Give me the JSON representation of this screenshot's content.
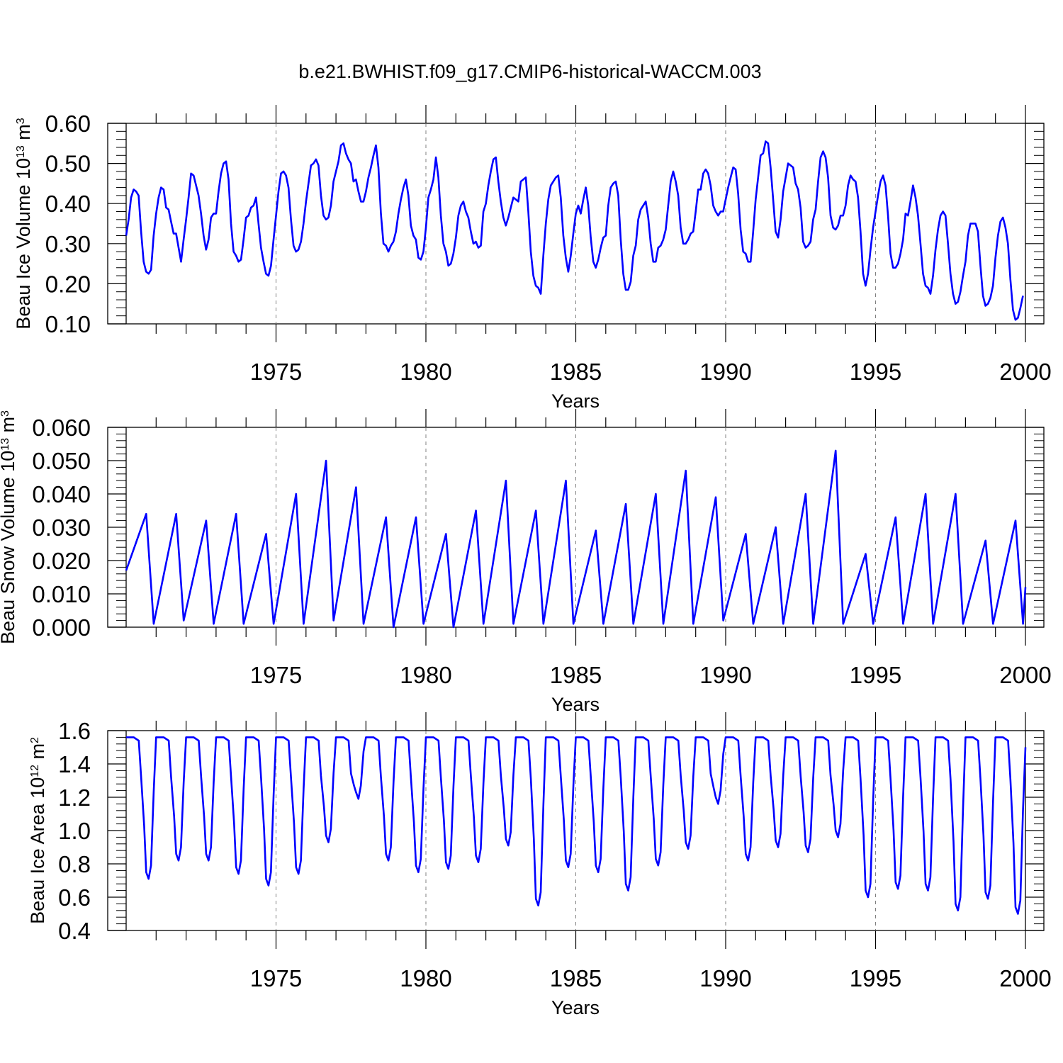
{
  "page_title": "b.e21.BWHIST.f09_g17.CMIP6-historical-WACCM.003",
  "colors": {
    "series": "#0000ff",
    "axes": "#000000",
    "gridline": "#808080"
  },
  "chart_data": [
    {
      "type": "line",
      "title": "b.e21.BWHIST.f09_g17.CMIP6-historical-WACCM.003",
      "ylabel": {
        "main": "Beau Ice Volume 10",
        "exp": "13",
        "unit": " m",
        "unit_exp": "3"
      },
      "xlabel": "Years",
      "xlim": [
        1970.0,
        2000.0
      ],
      "ylim": [
        0.1,
        0.6
      ],
      "yticks": [
        "0.10",
        "0.20",
        "0.30",
        "0.40",
        "0.50",
        "0.60"
      ],
      "xticks": [
        "1975",
        "1980",
        "1985",
        "1990",
        "1995",
        "2000"
      ],
      "grid": "vertical dashed at major x ticks",
      "series": [
        {
          "name": "Beau Ice Volume",
          "x_start": 1970.0,
          "x_step": 0.0833333,
          "values": [
            0.32,
            0.36,
            0.415,
            0.435,
            0.43,
            0.42,
            0.33,
            0.255,
            0.23,
            0.225,
            0.235,
            0.32,
            0.375,
            0.415,
            0.44,
            0.435,
            0.39,
            0.385,
            0.355,
            0.325,
            0.325,
            0.29,
            0.255,
            0.31,
            0.36,
            0.415,
            0.475,
            0.47,
            0.445,
            0.42,
            0.375,
            0.32,
            0.285,
            0.31,
            0.365,
            0.375,
            0.375,
            0.43,
            0.475,
            0.5,
            0.505,
            0.46,
            0.35,
            0.28,
            0.27,
            0.255,
            0.26,
            0.31,
            0.365,
            0.37,
            0.39,
            0.395,
            0.415,
            0.35,
            0.29,
            0.255,
            0.225,
            0.22,
            0.245,
            0.31,
            0.37,
            0.43,
            0.475,
            0.48,
            0.47,
            0.44,
            0.36,
            0.295,
            0.28,
            0.285,
            0.305,
            0.35,
            0.405,
            0.45,
            0.495,
            0.5,
            0.51,
            0.495,
            0.42,
            0.37,
            0.36,
            0.365,
            0.395,
            0.455,
            0.48,
            0.505,
            0.545,
            0.55,
            0.525,
            0.51,
            0.5,
            0.455,
            0.46,
            0.43,
            0.405,
            0.405,
            0.43,
            0.465,
            0.49,
            0.52,
            0.545,
            0.49,
            0.375,
            0.3,
            0.295,
            0.28,
            0.295,
            0.305,
            0.33,
            0.375,
            0.41,
            0.44,
            0.46,
            0.42,
            0.345,
            0.32,
            0.31,
            0.265,
            0.26,
            0.28,
            0.34,
            0.415,
            0.435,
            0.46,
            0.515,
            0.465,
            0.37,
            0.3,
            0.28,
            0.245,
            0.25,
            0.275,
            0.315,
            0.37,
            0.395,
            0.405,
            0.38,
            0.365,
            0.33,
            0.3,
            0.305,
            0.29,
            0.295,
            0.38,
            0.4,
            0.445,
            0.48,
            0.51,
            0.515,
            0.455,
            0.405,
            0.365,
            0.345,
            0.365,
            0.39,
            0.415,
            0.41,
            0.405,
            0.455,
            0.46,
            0.465,
            0.38,
            0.28,
            0.22,
            0.195,
            0.19,
            0.175,
            0.27,
            0.35,
            0.41,
            0.445,
            0.455,
            0.465,
            0.47,
            0.415,
            0.32,
            0.265,
            0.23,
            0.27,
            0.325,
            0.375,
            0.395,
            0.375,
            0.41,
            0.44,
            0.395,
            0.315,
            0.255,
            0.24,
            0.26,
            0.29,
            0.315,
            0.32,
            0.395,
            0.44,
            0.45,
            0.455,
            0.42,
            0.31,
            0.225,
            0.185,
            0.185,
            0.205,
            0.27,
            0.295,
            0.36,
            0.385,
            0.395,
            0.405,
            0.365,
            0.3,
            0.255,
            0.255,
            0.29,
            0.295,
            0.31,
            0.335,
            0.395,
            0.455,
            0.48,
            0.455,
            0.42,
            0.34,
            0.3,
            0.3,
            0.31,
            0.325,
            0.33,
            0.38,
            0.435,
            0.435,
            0.475,
            0.485,
            0.475,
            0.445,
            0.395,
            0.38,
            0.37,
            0.38,
            0.38,
            0.41,
            0.44,
            0.465,
            0.49,
            0.485,
            0.425,
            0.335,
            0.28,
            0.275,
            0.255,
            0.255,
            0.33,
            0.41,
            0.465,
            0.52,
            0.525,
            0.555,
            0.55,
            0.49,
            0.41,
            0.33,
            0.315,
            0.36,
            0.43,
            0.465,
            0.5,
            0.495,
            0.49,
            0.45,
            0.435,
            0.39,
            0.305,
            0.29,
            0.295,
            0.305,
            0.36,
            0.385,
            0.455,
            0.515,
            0.53,
            0.515,
            0.465,
            0.37,
            0.34,
            0.335,
            0.345,
            0.37,
            0.37,
            0.395,
            0.445,
            0.47,
            0.46,
            0.455,
            0.415,
            0.33,
            0.225,
            0.195,
            0.225,
            0.285,
            0.34,
            0.38,
            0.42,
            0.455,
            0.47,
            0.445,
            0.37,
            0.275,
            0.24,
            0.24,
            0.25,
            0.275,
            0.31,
            0.375,
            0.37,
            0.405,
            0.445,
            0.415,
            0.37,
            0.3,
            0.225,
            0.195,
            0.19,
            0.175,
            0.22,
            0.285,
            0.335,
            0.37,
            0.38,
            0.37,
            0.3,
            0.225,
            0.175,
            0.15,
            0.155,
            0.18,
            0.22,
            0.255,
            0.32,
            0.35,
            0.35,
            0.35,
            0.33,
            0.245,
            0.17,
            0.145,
            0.15,
            0.165,
            0.195,
            0.265,
            0.32,
            0.355,
            0.365,
            0.34,
            0.3,
            0.21,
            0.135,
            0.11,
            0.115,
            0.14,
            0.17
          ]
        }
      ]
    },
    {
      "type": "line",
      "ylabel": {
        "main": "Beau Snow Volume 10",
        "exp": "13",
        "unit": " m",
        "unit_exp": "3"
      },
      "xlabel": "Years",
      "xlim": [
        1970.0,
        2000.0
      ],
      "ylim": [
        0.0,
        0.06
      ],
      "yticks": [
        "0.000",
        "0.010",
        "0.020",
        "0.030",
        "0.040",
        "0.050",
        "0.060"
      ],
      "xticks": [
        "1975",
        "1980",
        "1985",
        "1990",
        "1995",
        "2000"
      ],
      "grid": "vertical dashed at major x ticks",
      "series": [
        {
          "name": "Beau Snow Volume",
          "x_start": 1970.0,
          "x_step": 0.0833333,
          "peaks": [
            [
              1970.67,
              0.034
            ],
            [
              1971.67,
              0.034
            ],
            [
              1972.67,
              0.032
            ],
            [
              1973.67,
              0.034
            ],
            [
              1974.67,
              0.028
            ],
            [
              1975.67,
              0.04
            ],
            [
              1976.67,
              0.05
            ],
            [
              1977.67,
              0.042
            ],
            [
              1978.67,
              0.033
            ],
            [
              1979.67,
              0.033
            ],
            [
              1980.67,
              0.028
            ],
            [
              1981.67,
              0.035
            ],
            [
              1982.67,
              0.044
            ],
            [
              1983.67,
              0.035
            ],
            [
              1984.67,
              0.044
            ],
            [
              1985.67,
              0.029
            ],
            [
              1986.67,
              0.037
            ],
            [
              1987.67,
              0.04
            ],
            [
              1988.67,
              0.047
            ],
            [
              1989.67,
              0.039
            ],
            [
              1990.67,
              0.028
            ],
            [
              1991.67,
              0.03
            ],
            [
              1992.67,
              0.04
            ],
            [
              1993.67,
              0.053
            ],
            [
              1994.67,
              0.022
            ],
            [
              1995.67,
              0.033
            ],
            [
              1996.67,
              0.04
            ],
            [
              1997.67,
              0.04
            ],
            [
              1998.67,
              0.026
            ],
            [
              1999.67,
              0.032
            ]
          ],
          "troughs": [
            [
              1970.0,
              0.017
            ],
            [
              1970.92,
              0.001
            ],
            [
              1971.92,
              0.002
            ],
            [
              1972.92,
              0.001
            ],
            [
              1973.92,
              0.001
            ],
            [
              1974.92,
              0.001
            ],
            [
              1975.92,
              0.001
            ],
            [
              1976.92,
              0.002
            ],
            [
              1977.92,
              0.001
            ],
            [
              1978.92,
              0.0
            ],
            [
              1979.92,
              0.001
            ],
            [
              1980.92,
              0.0
            ],
            [
              1981.92,
              0.001
            ],
            [
              1982.92,
              0.001
            ],
            [
              1983.92,
              0.001
            ],
            [
              1984.92,
              0.001
            ],
            [
              1985.92,
              0.001
            ],
            [
              1986.92,
              0.001
            ],
            [
              1987.92,
              0.001
            ],
            [
              1988.92,
              0.001
            ],
            [
              1989.92,
              0.002
            ],
            [
              1990.92,
              0.001
            ],
            [
              1991.92,
              0.001
            ],
            [
              1992.92,
              0.001
            ],
            [
              1993.92,
              0.001
            ],
            [
              1994.92,
              0.001
            ],
            [
              1995.92,
              0.001
            ],
            [
              1996.92,
              0.001
            ],
            [
              1997.92,
              0.001
            ],
            [
              1998.92,
              0.001
            ],
            [
              1999.92,
              0.001
            ],
            [
              2000.0,
              0.012
            ]
          ]
        }
      ]
    },
    {
      "type": "line",
      "ylabel": {
        "main": "Beau Ice Area 10",
        "exp": "12",
        "unit": " m",
        "unit_exp": "2"
      },
      "xlabel": "Years",
      "xlim": [
        1970.0,
        2000.0
      ],
      "ylim": [
        0.4,
        1.6
      ],
      "yticks": [
        "0.4",
        "0.6",
        "0.8",
        "1.0",
        "1.2",
        "1.4",
        "1.6"
      ],
      "xticks": [
        "1975",
        "1980",
        "1985",
        "1990",
        "1995",
        "2000"
      ],
      "grid": "vertical dashed at major x ticks",
      "series": [
        {
          "name": "Beau Ice Area",
          "x_start": 1970.0,
          "x_step": 0.0833333,
          "minima": [
            0.71,
            0.82,
            0.82,
            0.74,
            0.67,
            0.74,
            0.93,
            1.19,
            0.82,
            0.75,
            0.77,
            0.81,
            0.91,
            0.55,
            0.78,
            0.75,
            0.64,
            0.79,
            0.89,
            1.16,
            0.82,
            0.9,
            0.87,
            0.96,
            0.6,
            0.65,
            0.64,
            0.52,
            0.59,
            0.5
          ],
          "start_value": 1.56,
          "end_value": 1.5,
          "max_value": 1.56
        }
      ]
    }
  ]
}
